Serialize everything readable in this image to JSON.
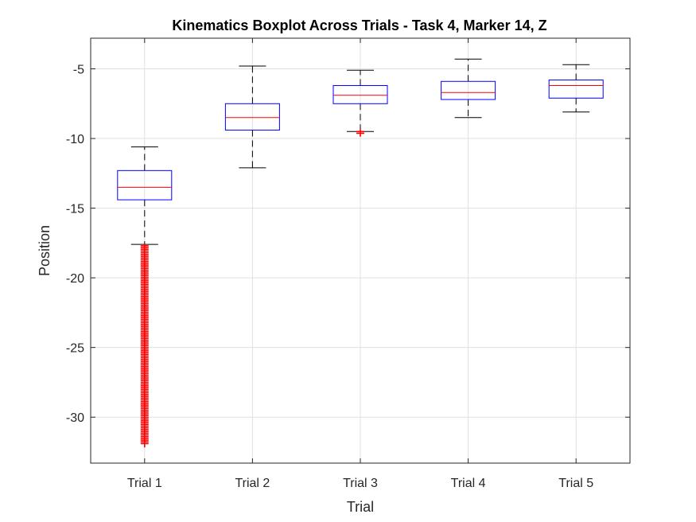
{
  "chart_data": {
    "type": "boxplot",
    "title": "Kinematics Boxplot Across Trials - Task 4, Marker 14, Z",
    "xlabel": "Trial",
    "ylabel": "Position",
    "categories": [
      "Trial 1",
      "Trial 2",
      "Trial 3",
      "Trial 4",
      "Trial 5"
    ],
    "ylim": [
      -33.3,
      -2.8
    ],
    "yticks": [
      -30,
      -25,
      -20,
      -15,
      -10,
      -5
    ],
    "grid": true,
    "boxes": [
      {
        "category": "Trial 1",
        "whisker_low": -17.6,
        "q1": -14.4,
        "median": -13.5,
        "q3": -12.3,
        "whisker_high": -10.6,
        "outliers_range": [
          -32.0,
          -17.7
        ]
      },
      {
        "category": "Trial 2",
        "whisker_low": -12.1,
        "q1": -9.4,
        "median": -8.5,
        "q3": -7.5,
        "whisker_high": -4.8,
        "outliers_range": null
      },
      {
        "category": "Trial 3",
        "whisker_low": -9.5,
        "q1": -7.5,
        "median": -6.9,
        "q3": -6.2,
        "whisker_high": -5.1,
        "outliers_range": [
          -9.7,
          -9.5
        ]
      },
      {
        "category": "Trial 4",
        "whisker_low": -8.5,
        "q1": -7.2,
        "median": -6.7,
        "q3": -5.9,
        "whisker_high": -4.3,
        "outliers_range": null
      },
      {
        "category": "Trial 5",
        "whisker_low": -8.1,
        "q1": -7.1,
        "median": -6.2,
        "q3": -5.8,
        "whisker_high": -4.7,
        "outliers_range": null
      }
    ],
    "colors": {
      "box": "#0000ff",
      "median": "#ff0000",
      "whisker": "#000000",
      "outlier": "#ff0000",
      "grid": "#e0e0e0",
      "axis": "#262626"
    }
  }
}
